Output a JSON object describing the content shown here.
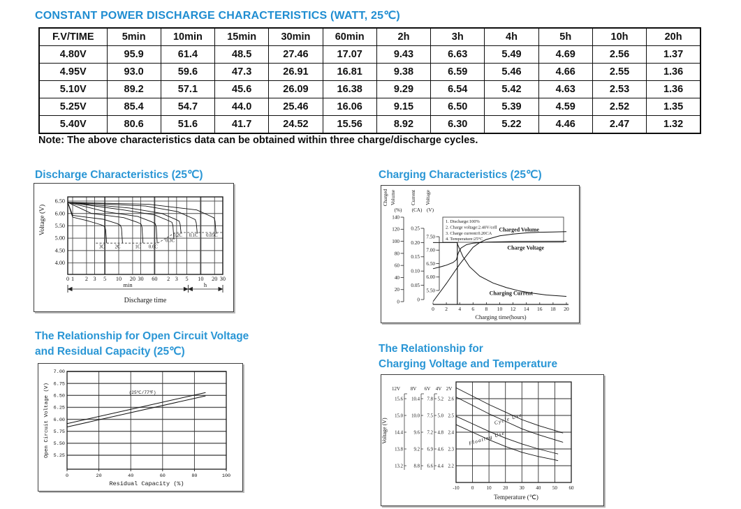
{
  "page": {
    "title": "CONSTANT POWER DISCHARGE CHARACTERISTICS (WATT, 25℃)",
    "note": "Note: The above characteristics data can be obtained within three charge/discharge cycles.",
    "accent_color": "#1f8dd1"
  },
  "power_table": {
    "header_row": [
      "F.V/TIME",
      "5min",
      "10min",
      "15min",
      "30min",
      "60min",
      "2h",
      "3h",
      "4h",
      "5h",
      "10h",
      "20h"
    ],
    "rows": [
      {
        "label": "4.80V",
        "values": [
          "95.9",
          "61.4",
          "48.5",
          "27.46",
          "17.07",
          "9.43",
          "6.63",
          "5.49",
          "4.69",
          "2.56",
          "1.37"
        ]
      },
      {
        "label": "4.95V",
        "values": [
          "93.0",
          "59.6",
          "47.3",
          "26.91",
          "16.81",
          "9.38",
          "6.59",
          "5.46",
          "4.66",
          "2.55",
          "1.36"
        ]
      },
      {
        "label": "5.10V",
        "values": [
          "89.2",
          "57.1",
          "45.6",
          "26.09",
          "16.38",
          "9.29",
          "6.54",
          "5.42",
          "4.63",
          "2.53",
          "1.36"
        ]
      },
      {
        "label": "5.25V",
        "values": [
          "85.4",
          "54.7",
          "44.0",
          "25.46",
          "16.06",
          "9.15",
          "6.50",
          "5.39",
          "4.59",
          "2.52",
          "1.35"
        ]
      },
      {
        "label": "5.40V",
        "values": [
          "80.6",
          "51.6",
          "41.7",
          "24.52",
          "15.56",
          "8.92",
          "6.30",
          "5.22",
          "4.46",
          "2.47",
          "1.32"
        ]
      }
    ]
  },
  "sections": {
    "discharge": {
      "title": "Discharge Characteristics (25℃)"
    },
    "charging": {
      "title": "Charging Characteristics (25℃)"
    },
    "ocv": {
      "title_line1": "The Relationship for Open Circuit Voltage",
      "title_line2": "and Residual Capacity (25℃)"
    },
    "cvt": {
      "title_line1": "The Relationship for",
      "title_line2": "Charging Voltage and Temperature"
    }
  },
  "chart_data": [
    {
      "id": "discharge",
      "type": "line",
      "title": "Discharge Characteristics (25℃)",
      "xlabel": "Discharge time",
      "ylabel": "Voltage (V)",
      "x_unit_groups": [
        "min",
        "h"
      ],
      "x_ticks": [
        {
          "label": "0",
          "t": 0
        },
        {
          "label": "1",
          "t": 1
        },
        {
          "label": "2",
          "t": 2
        },
        {
          "label": "3",
          "t": 3
        },
        {
          "label": "5",
          "t": 5
        },
        {
          "label": "10",
          "t": 10
        },
        {
          "label": "20",
          "t": 20
        },
        {
          "label": "30",
          "t": 30
        },
        {
          "label": "60",
          "t": 60
        },
        {
          "label": "2",
          "t": 120
        },
        {
          "label": "3",
          "t": 180
        },
        {
          "label": "5",
          "t": 300
        },
        {
          "label": "10",
          "t": 600
        },
        {
          "label": "20",
          "t": 1200
        },
        {
          "label": "30",
          "t": 1800
        }
      ],
      "y_ticks": [
        "6.50",
        "6.00",
        "5.50",
        "5.00",
        "4.50",
        "4.00"
      ],
      "series": [
        {
          "name": "3C",
          "dip_v": 5.85,
          "plateau_v": 5.5,
          "knee_min": 5.2,
          "cut_v": 4.8
        },
        {
          "name": "2C",
          "dip_v": 5.92,
          "plateau_v": 5.55,
          "knee_min": 11.5,
          "cut_v": 4.8
        },
        {
          "name": "1C",
          "dip_v": 6.0,
          "plateau_v": 5.6,
          "knee_min": 32,
          "cut_v": 4.8
        },
        {
          "name": "0.6C",
          "dip_v": 6.07,
          "plateau_v": 5.62,
          "knee_min": 65,
          "cut_v": 4.8
        },
        {
          "name": "0.3C",
          "dip_v": 6.15,
          "plateau_v": 5.67,
          "knee_min": 150,
          "cut_v": 4.95
        },
        {
          "name": "0.2C",
          "dip_v": 6.22,
          "plateau_v": 5.72,
          "knee_min": 215,
          "cut_v": 5.2
        },
        {
          "name": "0.1C",
          "dip_v": 6.3,
          "plateau_v": 5.78,
          "knee_min": 480,
          "cut_v": 5.2
        },
        {
          "name": "0.05C",
          "dip_v": 6.37,
          "plateau_v": 5.85,
          "knee_min": 1230,
          "cut_v": 5.2
        }
      ],
      "series_labels": [
        {
          "text": "3C",
          "t": 4.3,
          "v": 4.66
        },
        {
          "text": "2C",
          "t": 9.5,
          "v": 4.66
        },
        {
          "text": "1C",
          "t": 26,
          "v": 4.66
        },
        {
          "text": "0.6C",
          "t": 56,
          "v": 4.66
        },
        {
          "text": "0.3C",
          "t": 130,
          "v": 4.92
        },
        {
          "text": "0.2C",
          "t": 190,
          "v": 5.13
        },
        {
          "text": "0.1C",
          "t": 420,
          "v": 5.13
        },
        {
          "text": "0.05C",
          "t": 1050,
          "v": 5.13
        }
      ]
    },
    {
      "id": "charging",
      "type": "line",
      "title": "Charging Characteristics (25℃)",
      "xlabel": "Charging time(hours)",
      "x_ticks": [
        0,
        2,
        4,
        6,
        8,
        10,
        12,
        14,
        16,
        18,
        20
      ],
      "axes": [
        {
          "name": "Charged Volume",
          "unit": "(%)",
          "ticks": [
            "140",
            "120",
            "100",
            "80",
            "60",
            "40",
            "20",
            "0"
          ]
        },
        {
          "name": "Current",
          "unit": "(CA)",
          "ticks": [
            "0.25",
            "0.20",
            "0.15",
            "0.10",
            "0.05",
            "0"
          ]
        },
        {
          "name": "Voltage",
          "unit": "(V)",
          "ticks": [
            "7.50",
            "7.00",
            "6.50",
            "6.00",
            "5.50"
          ]
        }
      ],
      "notes": [
        "1. Discharge:100%",
        "2. Charge voltage:2.40V/cell",
        "3. Charge current:0.20CA",
        "4. Temperature:25°C"
      ],
      "series": [
        {
          "name": "Charged Volume",
          "axis": "volume",
          "points": [
            [
              0,
              0
            ],
            [
              2,
              30
            ],
            [
              4,
              62
            ],
            [
              6,
              90
            ],
            [
              7,
              98
            ],
            [
              8,
              103
            ],
            [
              10,
              109
            ],
            [
              12,
              112
            ],
            [
              14,
              114
            ],
            [
              16,
              115
            ],
            [
              18,
              115.5
            ],
            [
              20,
              116
            ]
          ]
        },
        {
          "name": "Charge Voltage",
          "axis": "voltage",
          "points": [
            [
              0,
              6.31
            ],
            [
              1,
              6.37
            ],
            [
              2,
              6.44
            ],
            [
              3,
              6.54
            ],
            [
              3.5,
              6.64
            ],
            [
              3.8,
              6.9
            ],
            [
              4.2,
              7.08
            ],
            [
              5,
              7.2
            ],
            [
              6,
              7.26
            ],
            [
              8,
              7.3
            ],
            [
              12,
              7.32
            ],
            [
              20,
              7.33
            ]
          ]
        },
        {
          "name": "Charging Current",
          "axis": "current",
          "points": [
            [
              0,
              0.2
            ],
            [
              3.6,
              0.2
            ],
            [
              3.75,
              0.19
            ],
            [
              4.5,
              0.15
            ],
            [
              5.5,
              0.115
            ],
            [
              7,
              0.082
            ],
            [
              9,
              0.058
            ],
            [
              11,
              0.042
            ],
            [
              13,
              0.03
            ],
            [
              15,
              0.022
            ],
            [
              17,
              0.016
            ],
            [
              20,
              0.011
            ]
          ]
        }
      ],
      "cc_marker_t": 3.65,
      "curve_labels": [
        {
          "text": "Charged Volume",
          "t": 12.9,
          "v": 119,
          "axis": "volume"
        },
        {
          "text": "Charge Voltage",
          "t": 13.9,
          "v": 7.08,
          "axis": "voltage"
        },
        {
          "text": "Charging Current",
          "t": 11.7,
          "v": 0.022,
          "axis": "current"
        }
      ]
    },
    {
      "id": "open-circuit-voltage",
      "type": "line",
      "title": "The Relationship for Open Circuit Voltage and Residual Capacity (25℃)",
      "xlabel": "Residual Capacity (%)",
      "ylabel": "Open Circuit Voltage (V)",
      "annotation": "(25℃/77℉)",
      "x_ticks": [
        0,
        20,
        40,
        60,
        80,
        100
      ],
      "y_ticks": [
        "7.00",
        "6.75",
        "6.50",
        "6.25",
        "6.00",
        "5.75",
        "5.50",
        "5.25"
      ],
      "series": [
        {
          "name": "upper",
          "points": [
            [
              0,
              5.91
            ],
            [
              40,
              6.21
            ],
            [
              87,
              6.56
            ]
          ]
        },
        {
          "name": "lower",
          "points": [
            [
              0,
              5.84
            ],
            [
              40,
              6.14
            ],
            [
              87,
              6.49
            ]
          ]
        }
      ]
    },
    {
      "id": "charging-voltage-temperature",
      "type": "line",
      "title": "The Relationship for Charging Voltage and Temperature",
      "xlabel": "Temperature (℃)",
      "ylabel": "Voltage (V)",
      "scale_headers": [
        "12V",
        "8V",
        "6V",
        "4V",
        "2V"
      ],
      "scale_rows": [
        [
          "15.6",
          "10.4",
          "7.8",
          "5.2",
          "2.6"
        ],
        [
          "15.0",
          "10.0",
          "7.5",
          "5.0",
          "2.5"
        ],
        [
          "14.4",
          "9.6",
          "7.2",
          "4.8",
          "2.4"
        ],
        [
          "13.8",
          "9.2",
          "6.9",
          "4.6",
          "2.3"
        ],
        [
          "13.2",
          "8.8",
          "6.6",
          "4.4",
          "2.2"
        ]
      ],
      "x_ticks": [
        -10,
        0,
        10,
        20,
        30,
        40,
        50,
        60
      ],
      "series": [
        {
          "name": "cycle-use-upper",
          "points": [
            [
              -10,
              2.665
            ],
            [
              0,
              2.615
            ],
            [
              10,
              2.565
            ],
            [
              20,
              2.52
            ],
            [
              30,
              2.475
            ],
            [
              40,
              2.44
            ],
            [
              50,
              2.41
            ],
            [
              55,
              2.395
            ]
          ]
        },
        {
          "name": "cycle-use-lower",
          "points": [
            [
              -10,
              2.61
            ],
            [
              0,
              2.56
            ],
            [
              10,
              2.51
            ],
            [
              20,
              2.465
            ],
            [
              30,
              2.42
            ],
            [
              40,
              2.385
            ],
            [
              50,
              2.355
            ],
            [
              55,
              2.34
            ]
          ]
        },
        {
          "name": "floating-use-upper",
          "points": [
            [
              -10,
              2.495
            ],
            [
              0,
              2.45
            ],
            [
              10,
              2.405
            ],
            [
              20,
              2.365
            ],
            [
              30,
              2.33
            ],
            [
              40,
              2.3
            ],
            [
              50,
              2.275
            ],
            [
              52,
              2.27
            ]
          ]
        },
        {
          "name": "floating-use-lower",
          "points": [
            [
              -10,
              2.445
            ],
            [
              0,
              2.4
            ],
            [
              10,
              2.355
            ],
            [
              20,
              2.315
            ],
            [
              30,
              2.28
            ],
            [
              40,
              2.255
            ],
            [
              50,
              2.235
            ],
            [
              52,
              2.23
            ]
          ]
        }
      ],
      "curve_labels": [
        {
          "text": "Cycle Use",
          "T": 22,
          "v": 2.47,
          "angle": -17
        },
        {
          "text": "Floating Use",
          "T": 9,
          "v": 2.355,
          "angle": -17
        }
      ]
    }
  ]
}
